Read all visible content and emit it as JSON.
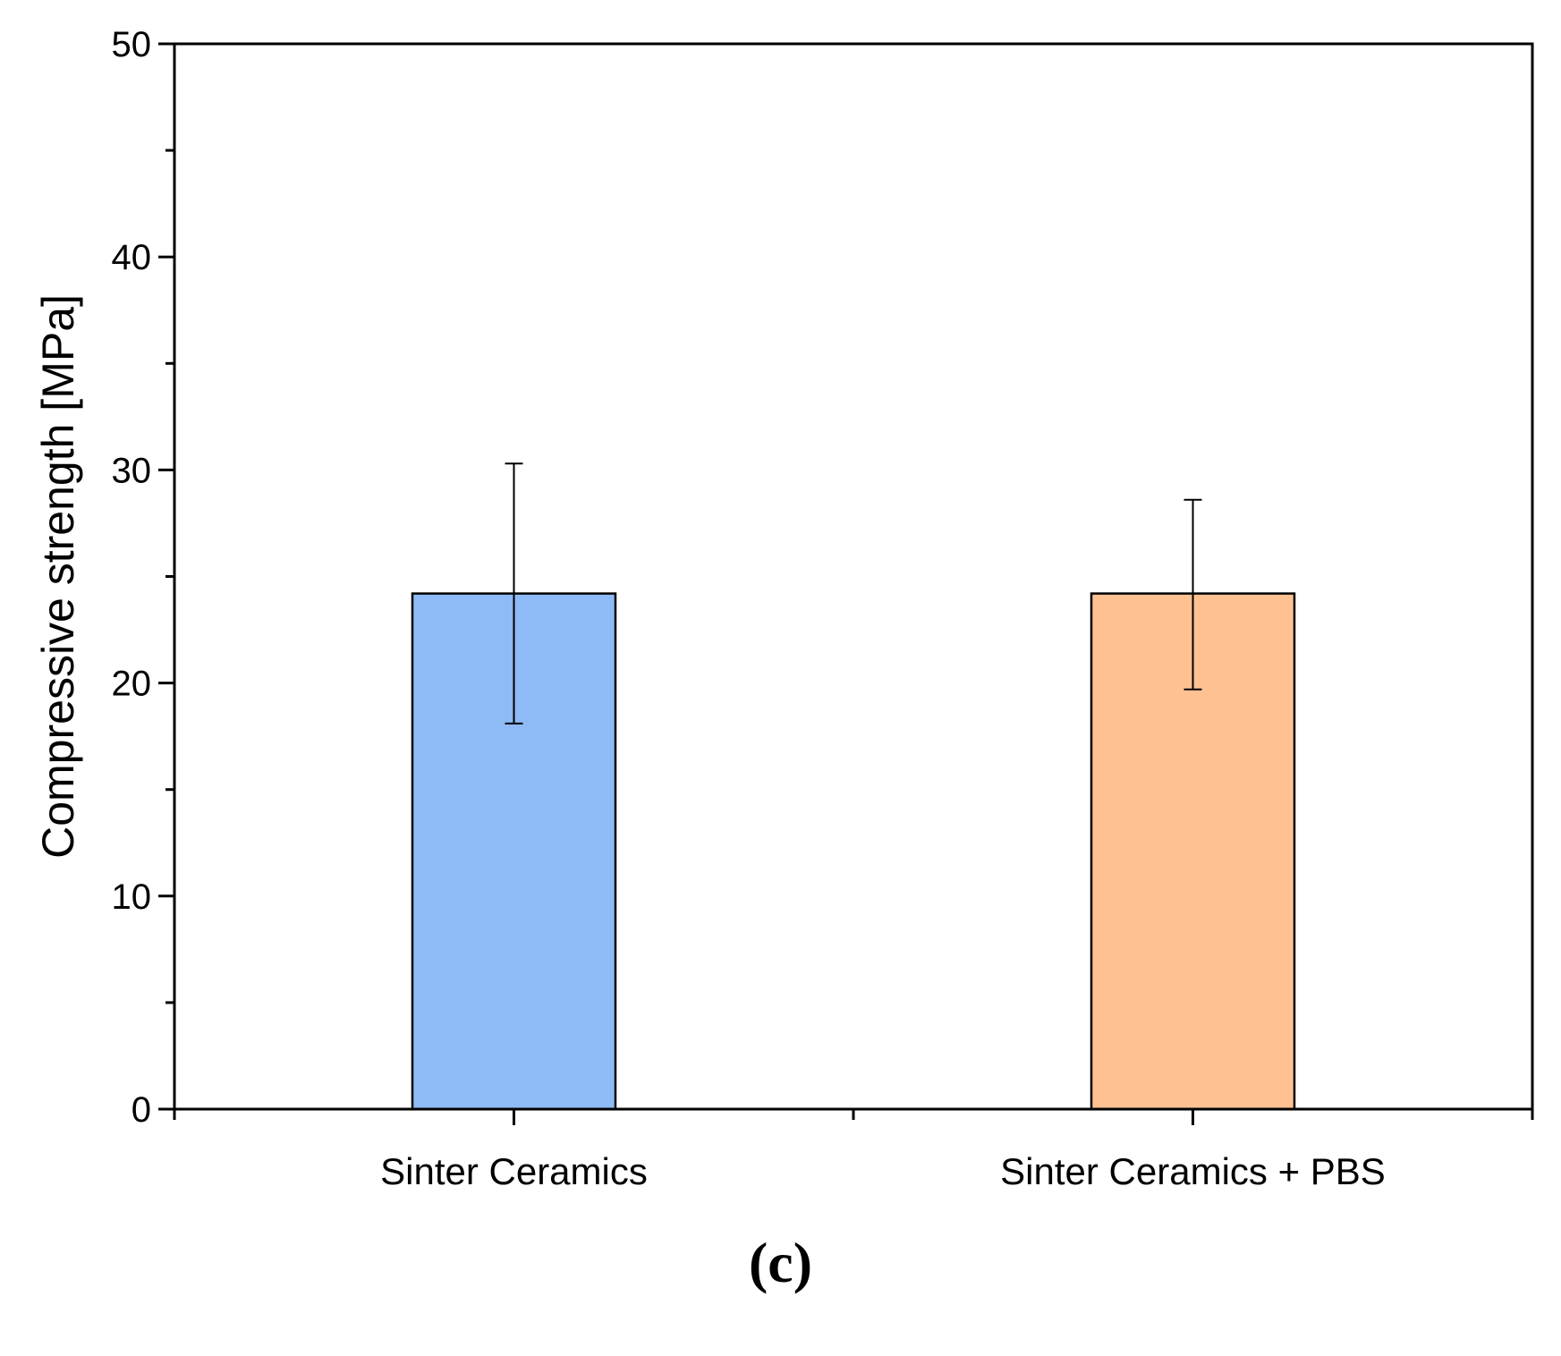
{
  "chart_data": {
    "type": "bar",
    "title": "",
    "xlabel": "",
    "ylabel": "Compressive strength [MPa]",
    "categories": [
      "Sinter Ceramics",
      "Sinter Ceramics + PBS"
    ],
    "values": [
      24.2,
      24.2
    ],
    "error_low": [
      18.1,
      19.7
    ],
    "error_high": [
      30.3,
      28.6
    ],
    "ylim": [
      0,
      50
    ],
    "yticks": [
      0,
      10,
      20,
      30,
      40,
      50
    ],
    "ytick_labels": [
      "0",
      "10",
      "20",
      "30",
      "40",
      "50"
    ],
    "y_minor_step": 5,
    "grid": false,
    "legend": "none",
    "colors": {
      "bars": [
        "#8ebaf5",
        "#fdc192"
      ],
      "edge": "#000000",
      "axis": "#000000"
    }
  },
  "panel_label": "(c)"
}
